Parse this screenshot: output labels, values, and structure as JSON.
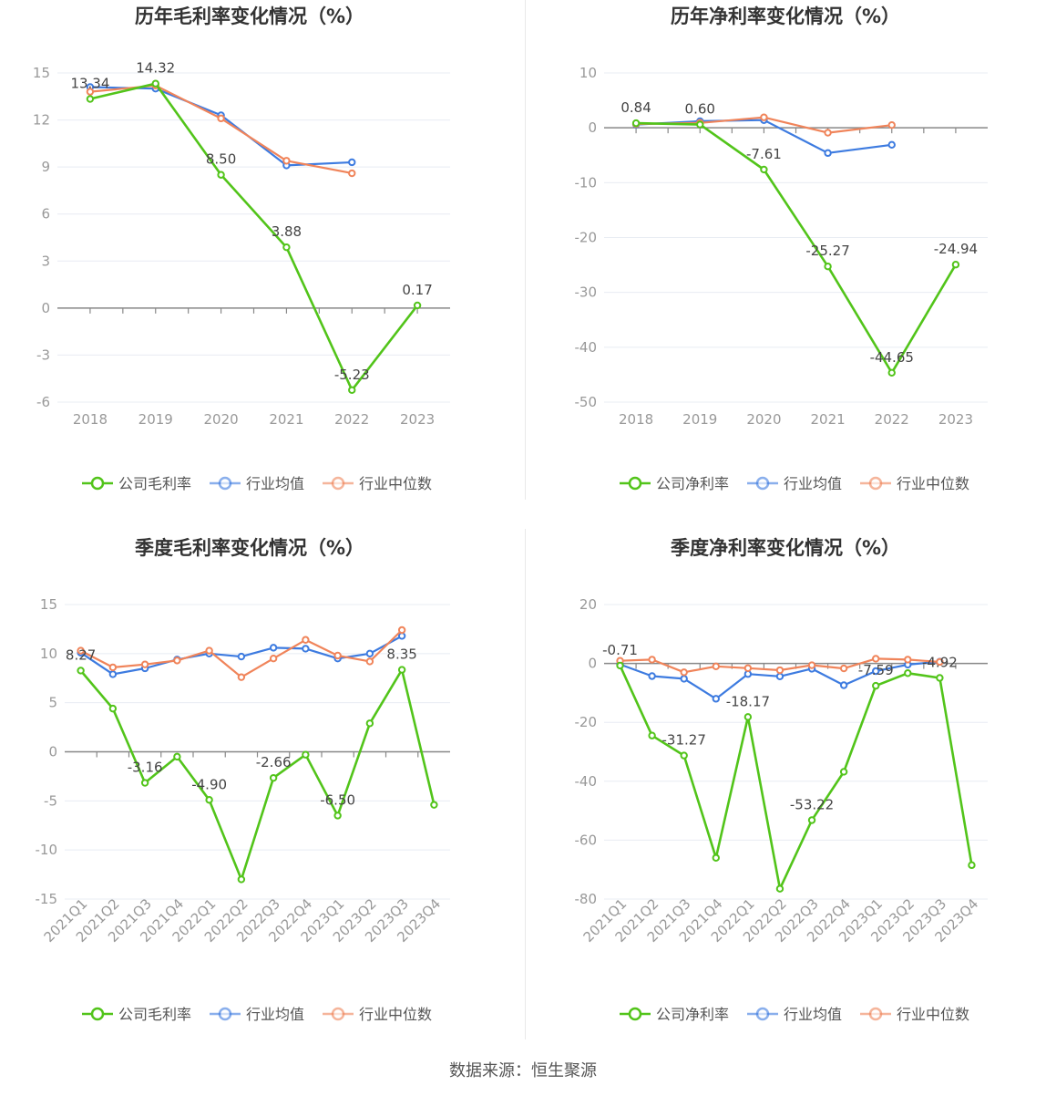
{
  "colors": {
    "company": "#52c41a",
    "avg": "#3d7be0",
    "median": "#f0845a",
    "axis": "#999999",
    "grid": "#e8ecf3",
    "title": "#333333"
  },
  "footer": {
    "source": "数据来源：恒生聚源"
  },
  "chart_data": [
    {
      "type": "line",
      "title": "历年毛利率变化情况（%）",
      "categories": [
        "2018",
        "2019",
        "2020",
        "2021",
        "2022",
        "2023"
      ],
      "ylim": [
        -6,
        15
      ],
      "yticks": [
        15,
        12,
        9,
        6,
        3,
        0,
        -3,
        -6
      ],
      "grid": true,
      "legend_position": "bottom",
      "series": [
        {
          "name": "公司毛利率",
          "key": "company",
          "values": [
            13.34,
            14.32,
            8.5,
            3.88,
            -5.23,
            0.17
          ],
          "labels": [
            "13.34",
            "14.32",
            "8.50",
            "3.88",
            "-5.23",
            "0.17"
          ]
        },
        {
          "name": "行业均值",
          "key": "avg",
          "values": [
            14.1,
            14.0,
            12.3,
            9.1,
            9.3,
            null
          ]
        },
        {
          "name": "行业中位数",
          "key": "median",
          "values": [
            13.8,
            14.2,
            12.1,
            9.4,
            8.6,
            null
          ]
        }
      ]
    },
    {
      "type": "line",
      "title": "历年净利率变化情况（%）",
      "categories": [
        "2018",
        "2019",
        "2020",
        "2021",
        "2022",
        "2023"
      ],
      "ylim": [
        -50,
        10
      ],
      "yticks": [
        10,
        0,
        -10,
        -20,
        -30,
        -40,
        -50
      ],
      "grid": true,
      "legend_position": "bottom",
      "series": [
        {
          "name": "公司净利率",
          "key": "company",
          "values": [
            0.84,
            0.6,
            -7.61,
            -25.27,
            -44.65,
            -24.94
          ],
          "labels": [
            "0.84",
            "0.60",
            "-7.61",
            "-25.27",
            "-44.65",
            "-24.94"
          ]
        },
        {
          "name": "行业均值",
          "key": "avg",
          "values": [
            0.6,
            1.2,
            1.4,
            -4.6,
            -3.1,
            null
          ]
        },
        {
          "name": "行业中位数",
          "key": "median",
          "values": [
            0.7,
            0.9,
            1.9,
            -0.9,
            0.5,
            null
          ]
        }
      ]
    },
    {
      "type": "line",
      "title": "季度毛利率变化情况（%）",
      "categories": [
        "2021Q1",
        "2021Q2",
        "2021Q3",
        "2021Q4",
        "2022Q1",
        "2022Q2",
        "2022Q3",
        "2022Q4",
        "2023Q1",
        "2023Q2",
        "2023Q3",
        "2023Q4"
      ],
      "ylim": [
        -15,
        15
      ],
      "yticks": [
        15,
        10,
        5,
        0,
        -5,
        -10,
        -15
      ],
      "grid": true,
      "legend_position": "bottom",
      "series": [
        {
          "name": "公司毛利率",
          "key": "company",
          "values": [
            8.27,
            4.4,
            -3.16,
            -0.5,
            -4.9,
            -13.0,
            -2.66,
            -0.3,
            -6.5,
            2.9,
            8.35,
            -5.4
          ],
          "labels": [
            "8.27",
            "",
            "-3.16",
            "",
            "-4.90",
            "",
            "-2.66",
            "",
            "-6.50",
            "",
            "8.35",
            ""
          ]
        },
        {
          "name": "行业均值",
          "key": "avg",
          "values": [
            10.1,
            7.9,
            8.5,
            9.4,
            10.0,
            9.7,
            10.6,
            10.5,
            9.5,
            10.0,
            11.8,
            null
          ]
        },
        {
          "name": "行业中位数",
          "key": "median",
          "values": [
            10.3,
            8.6,
            8.9,
            9.3,
            10.3,
            7.6,
            9.5,
            11.4,
            9.8,
            9.2,
            12.4,
            null
          ]
        }
      ]
    },
    {
      "type": "line",
      "title": "季度净利率变化情况（%）",
      "categories": [
        "2021Q1",
        "2021Q2",
        "2021Q3",
        "2021Q4",
        "2022Q1",
        "2022Q2",
        "2022Q3",
        "2022Q4",
        "2023Q1",
        "2023Q2",
        "2023Q3",
        "2023Q4"
      ],
      "ylim": [
        -80,
        20
      ],
      "yticks": [
        20,
        0,
        -20,
        -40,
        -60,
        -80
      ],
      "grid": true,
      "legend_position": "bottom",
      "series": [
        {
          "name": "公司净利率",
          "key": "company",
          "values": [
            -0.71,
            -24.5,
            -31.27,
            -66.0,
            -18.17,
            -76.5,
            -53.22,
            -36.8,
            -7.59,
            -3.3,
            -4.92,
            -68.5
          ],
          "labels": [
            "-0.71",
            "",
            "-31.27",
            "",
            "-18.17",
            "",
            "-53.22",
            "",
            "-7.59",
            "",
            "-4.92",
            ""
          ]
        },
        {
          "name": "行业均值",
          "key": "avg",
          "values": [
            -0.3,
            -4.3,
            -5.2,
            -12.0,
            -3.6,
            -4.4,
            -1.8,
            -7.4,
            -2.6,
            -0.4,
            0.6,
            null
          ]
        },
        {
          "name": "行业中位数",
          "key": "median",
          "values": [
            0.9,
            1.3,
            -3.0,
            -1.0,
            -1.6,
            -2.3,
            -0.6,
            -1.7,
            1.6,
            1.3,
            0.5,
            null
          ]
        }
      ]
    }
  ]
}
